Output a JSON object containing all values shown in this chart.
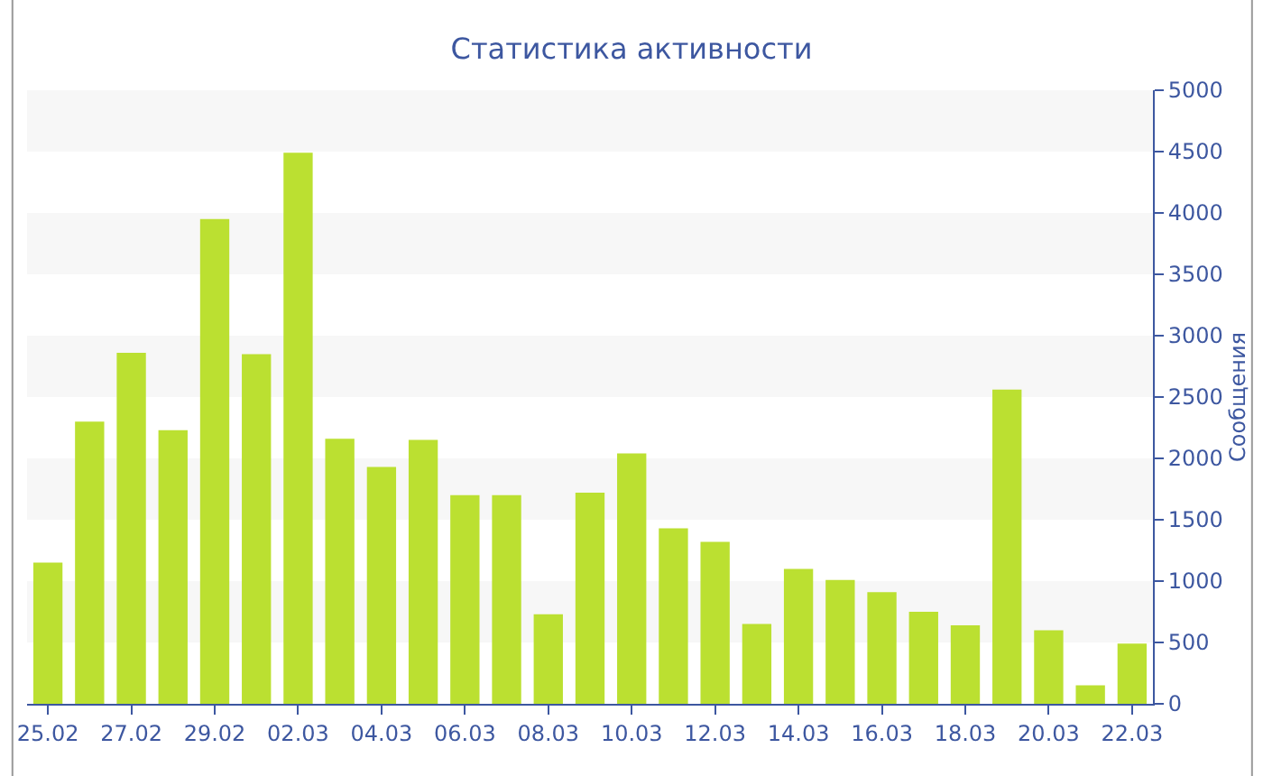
{
  "chart_data": {
    "type": "bar",
    "title": "Статистика активности",
    "ylabel": "Сообщения",
    "categories": [
      "25.02",
      null,
      "27.02",
      null,
      "29.02",
      null,
      "02.03",
      null,
      "04.03",
      null,
      "06.03",
      null,
      "08.03",
      null,
      "10.03",
      null,
      "12.03",
      null,
      "14.03",
      null,
      "16.03",
      null,
      "18.03",
      null,
      "20.03",
      null,
      "22.03"
    ],
    "values": [
      1150,
      2300,
      2860,
      2230,
      3950,
      2850,
      4490,
      2160,
      1930,
      2150,
      1700,
      1700,
      730,
      1720,
      2040,
      1430,
      1320,
      650,
      1100,
      1010,
      910,
      750,
      640,
      2560,
      600,
      150,
      490
    ],
    "color": "#bbe031",
    "ylim": [
      0,
      5000
    ],
    "yticks": [
      0,
      500,
      1000,
      1500,
      2000,
      2500,
      3000,
      3500,
      4000,
      4500,
      5000
    ],
    "grid": false
  }
}
